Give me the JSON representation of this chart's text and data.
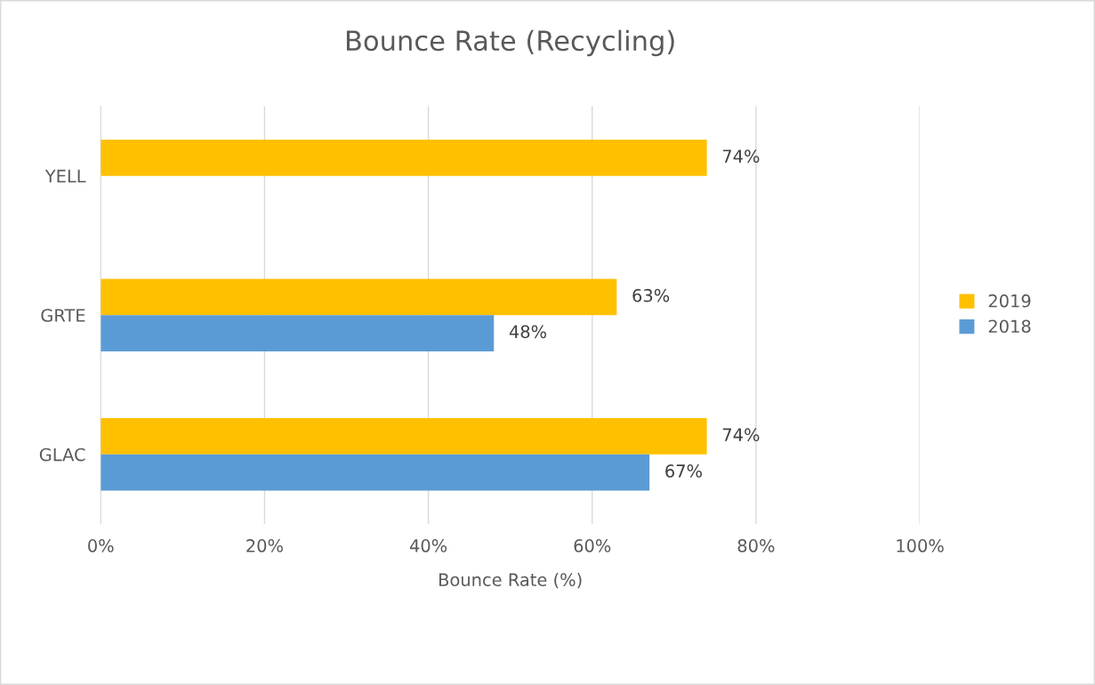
{
  "chart_data": {
    "type": "bar",
    "orientation": "horizontal",
    "title": "Bounce Rate (Recycling)",
    "xlabel": "Bounce Rate (%)",
    "categories": [
      "YELL",
      "GRTE",
      "GLAC"
    ],
    "series": [
      {
        "name": "2019",
        "color": "#ffc000",
        "values": [
          74,
          63,
          74
        ],
        "value_labels": [
          "74%",
          "63%",
          "74%"
        ]
      },
      {
        "name": "2018",
        "color": "#5b9bd5",
        "values": [
          null,
          48,
          67
        ],
        "value_labels": [
          null,
          "48%",
          "67%"
        ]
      }
    ],
    "xlim": [
      0,
      100
    ],
    "xticks": [
      {
        "value": 0,
        "label": "0%"
      },
      {
        "value": 20,
        "label": "20%"
      },
      {
        "value": 40,
        "label": "40%"
      },
      {
        "value": 60,
        "label": "60%"
      },
      {
        "value": 80,
        "label": "80%"
      },
      {
        "value": 100,
        "label": "100%"
      }
    ],
    "grid": "x",
    "legend": "right"
  }
}
